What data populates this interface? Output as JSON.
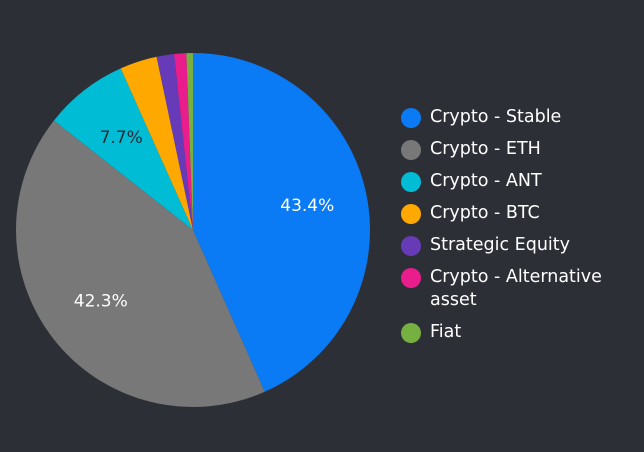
{
  "chart_data": {
    "type": "pie",
    "title": "",
    "legend_position": "right",
    "slices": [
      {
        "name": "Crypto - Stable",
        "value": 43.4,
        "label": "43.4%",
        "color": "#0a7bf5"
      },
      {
        "name": "Crypto - ETH",
        "value": 42.3,
        "label": "42.3%",
        "color": "#787878"
      },
      {
        "name": "Crypto - ANT",
        "value": 7.7,
        "label": "7.7%",
        "color": "#00bcd4"
      },
      {
        "name": "Crypto - BTC",
        "value": 3.4,
        "label": "",
        "color": "#ffa800"
      },
      {
        "name": "Strategic Equity",
        "value": 1.6,
        "label": "",
        "color": "#673ab7"
      },
      {
        "name": "Crypto - Alternative asset",
        "value": 1.1,
        "label": "",
        "color": "#e91e8c"
      },
      {
        "name": "Fiat",
        "value": 0.6,
        "label": "",
        "color": "#76b041"
      }
    ]
  }
}
